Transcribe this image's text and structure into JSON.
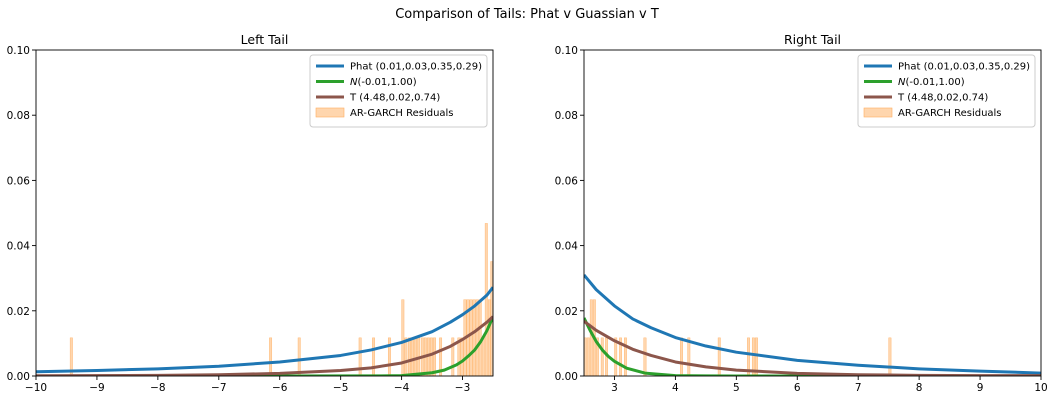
{
  "figure_title": "Comparison of Tails: Phat v Guassian v T",
  "legend": {
    "entries": [
      {
        "label": "Phat (0.01,0.03,0.35,0.29)",
        "color": "#1f77b4",
        "kind": "line"
      },
      {
        "label_prefix": "N",
        "label_rest": "(-0.01,1.00)",
        "color": "#2ca02c",
        "kind": "line"
      },
      {
        "label": "T (4.48,0.02,0.74)",
        "color": "#8c564b",
        "kind": "line"
      },
      {
        "label": "AR-GARCH Residuals",
        "color": "#ffbb78",
        "kind": "bar"
      }
    ]
  },
  "chart_data": [
    {
      "type": "line",
      "title": "Left Tail",
      "xlabel": "",
      "ylabel": "",
      "xlim": [
        -10,
        -2.5
      ],
      "ylim": [
        0,
        0.1
      ],
      "xticks": [
        -10,
        -9,
        -8,
        -7,
        -6,
        -5,
        -4,
        -3
      ],
      "yticks": [
        0.0,
        0.02,
        0.04,
        0.06,
        0.08,
        0.1
      ],
      "ytick_labels": [
        "0.00",
        "0.02",
        "0.04",
        "0.06",
        "0.08",
        "0.10"
      ],
      "legend_position": "top-right",
      "series": [
        {
          "name": "Phat (0.01,0.03,0.35,0.29)",
          "color": "#1f77b4",
          "x": [
            -10,
            -9,
            -8,
            -7,
            -6,
            -5,
            -4.5,
            -4,
            -3.5,
            -3.2,
            -3,
            -2.8,
            -2.6,
            -2.5
          ],
          "y": [
            0.0013,
            0.0017,
            0.0022,
            0.003,
            0.0043,
            0.0063,
            0.008,
            0.0103,
            0.0136,
            0.0165,
            0.0188,
            0.0215,
            0.0248,
            0.0272
          ]
        },
        {
          "name": "N(-0.01,1.00)",
          "color": "#2ca02c",
          "x": [
            -10,
            -4.5,
            -4,
            -3.5,
            -3.3,
            -3.1,
            -3,
            -2.9,
            -2.8,
            -2.7,
            -2.6,
            -2.5
          ],
          "y": [
            0.0,
            2e-05,
            0.0001,
            0.001,
            0.0018,
            0.0034,
            0.0046,
            0.0062,
            0.008,
            0.0106,
            0.0139,
            0.0181
          ]
        },
        {
          "name": "T (4.48,0.02,0.74)",
          "color": "#8c564b",
          "x": [
            -10,
            -8,
            -7,
            -6,
            -5,
            -4.5,
            -4,
            -3.5,
            -3.2,
            -3,
            -2.8,
            -2.6,
            -2.5
          ],
          "y": [
            8e-05,
            0.0002,
            0.0004,
            0.0008,
            0.0017,
            0.0025,
            0.004,
            0.0067,
            0.0091,
            0.0112,
            0.0136,
            0.0165,
            0.0182
          ]
        }
      ],
      "histogram": {
        "name": "AR-GARCH Residuals",
        "color": "#ffbb78",
        "bar_width": 0.04,
        "bars": [
          [
            -9.42,
            0.0117
          ],
          [
            -6.15,
            0.0117
          ],
          [
            -5.68,
            0.0117
          ],
          [
            -4.68,
            0.0117
          ],
          [
            -4.46,
            0.0117
          ],
          [
            -4.2,
            0.0117
          ],
          [
            -3.98,
            0.0234
          ],
          [
            -3.93,
            0.0117
          ],
          [
            -3.87,
            0.0117
          ],
          [
            -3.82,
            0.0117
          ],
          [
            -3.77,
            0.0117
          ],
          [
            -3.72,
            0.0117
          ],
          [
            -3.66,
            0.0117
          ],
          [
            -3.61,
            0.0117
          ],
          [
            -3.56,
            0.0117
          ],
          [
            -3.51,
            0.0117
          ],
          [
            -3.46,
            0.0117
          ],
          [
            -3.36,
            0.0117
          ],
          [
            -3.16,
            0.0117
          ],
          [
            -3.06,
            0.0117
          ],
          [
            -3.01,
            0.0117
          ],
          [
            -2.96,
            0.0234
          ],
          [
            -2.91,
            0.0234
          ],
          [
            -2.86,
            0.0234
          ],
          [
            -2.81,
            0.0234
          ],
          [
            -2.76,
            0.0234
          ],
          [
            -2.71,
            0.0234
          ],
          [
            -2.66,
            0.0117
          ],
          [
            -2.61,
            0.0468
          ],
          [
            -2.56,
            0.0234
          ],
          [
            -2.52,
            0.0351
          ]
        ]
      }
    },
    {
      "type": "line",
      "title": "Right Tail",
      "xlabel": "",
      "ylabel": "",
      "xlim": [
        2.5,
        10
      ],
      "ylim": [
        0,
        0.1
      ],
      "xticks": [
        3,
        4,
        5,
        6,
        7,
        8,
        9,
        10
      ],
      "yticks": [
        0.0,
        0.02,
        0.04,
        0.06,
        0.08,
        0.1
      ],
      "ytick_labels": [
        "0.00",
        "0.02",
        "0.04",
        "0.06",
        "0.08",
        "0.10"
      ],
      "legend_position": "top-right",
      "series": [
        {
          "name": "Phat (0.01,0.03,0.35,0.29)",
          "color": "#1f77b4",
          "x": [
            2.5,
            2.7,
            3,
            3.3,
            3.6,
            4,
            4.5,
            5,
            6,
            7,
            8,
            9,
            10
          ],
          "y": [
            0.031,
            0.0265,
            0.0215,
            0.0175,
            0.0148,
            0.0118,
            0.0092,
            0.0073,
            0.0048,
            0.0033,
            0.0022,
            0.0015,
            0.0009
          ]
        },
        {
          "name": "N(-0.01,1.00)",
          "color": "#2ca02c",
          "x": [
            2.5,
            2.6,
            2.7,
            2.8,
            2.9,
            3,
            3.2,
            3.5,
            4,
            4.5,
            5,
            10
          ],
          "y": [
            0.0178,
            0.014,
            0.0106,
            0.008,
            0.006,
            0.0045,
            0.0024,
            0.0009,
            0.0001,
            2e-05,
            0.0,
            0.0
          ]
        },
        {
          "name": "T (4.48,0.02,0.74)",
          "color": "#8c564b",
          "x": [
            2.5,
            2.7,
            3,
            3.3,
            3.6,
            4,
            4.5,
            5,
            6,
            7,
            8,
            9,
            10
          ],
          "y": [
            0.0168,
            0.014,
            0.0108,
            0.0082,
            0.0063,
            0.0043,
            0.0028,
            0.0018,
            0.0008,
            0.0004,
            0.0002,
            0.0001,
            0.0001
          ]
        }
      ],
      "histogram": {
        "name": "AR-GARCH Residuals",
        "color": "#ffbb78",
        "bar_width": 0.04,
        "bars": [
          [
            2.52,
            0.0117
          ],
          [
            2.57,
            0.0117
          ],
          [
            2.62,
            0.0234
          ],
          [
            2.67,
            0.0234
          ],
          [
            2.72,
            0.0117
          ],
          [
            2.8,
            0.0117
          ],
          [
            2.87,
            0.0117
          ],
          [
            3.02,
            0.0117
          ],
          [
            3.1,
            0.0117
          ],
          [
            3.18,
            0.0117
          ],
          [
            3.5,
            0.0117
          ],
          [
            4.1,
            0.0117
          ],
          [
            4.22,
            0.0117
          ],
          [
            4.72,
            0.0117
          ],
          [
            5.2,
            0.0117
          ],
          [
            5.28,
            0.0117
          ],
          [
            5.33,
            0.0117
          ],
          [
            7.52,
            0.0117
          ]
        ]
      }
    }
  ]
}
